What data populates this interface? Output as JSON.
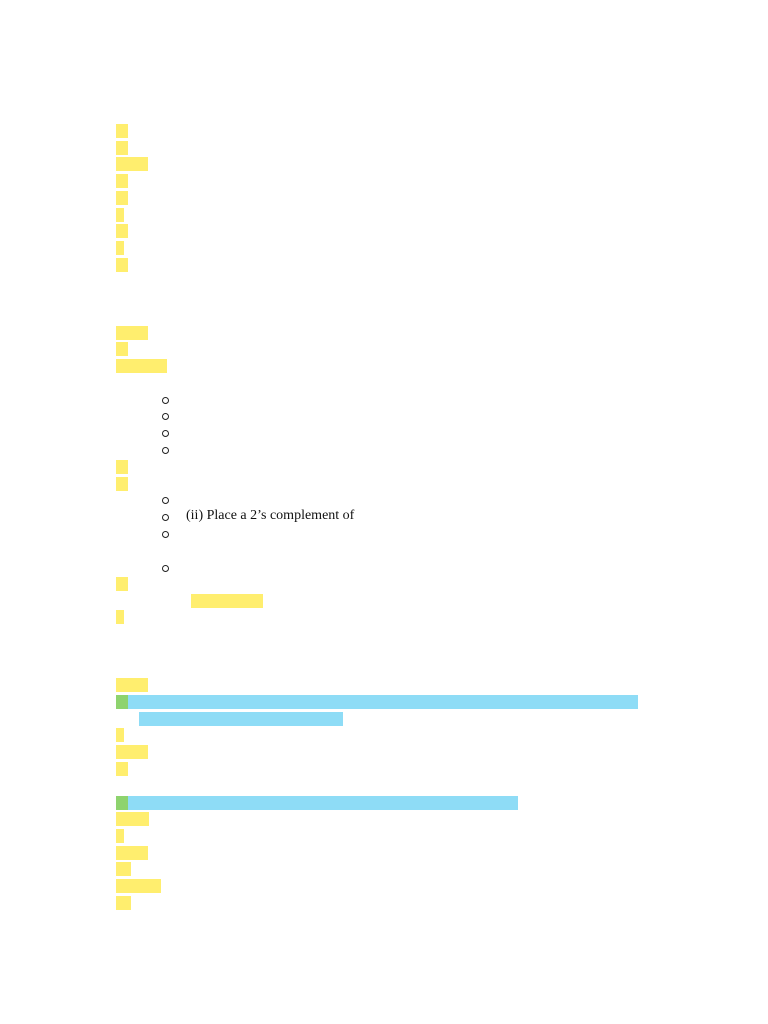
{
  "document": {
    "visible_text": "(ii) Place a 2’s complement of"
  },
  "colors": {
    "highlight_yellow": "#ffee6e",
    "highlight_blue": "#8edcf6",
    "highlight_green": "#8ed36e"
  }
}
